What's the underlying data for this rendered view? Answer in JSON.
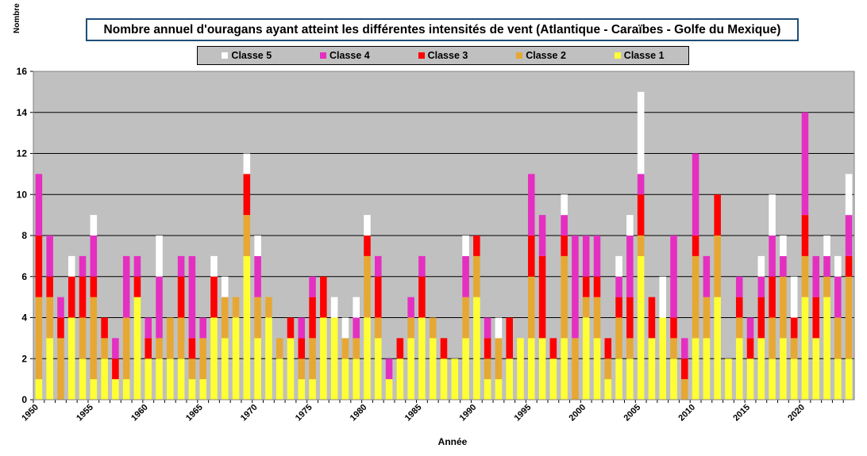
{
  "title": "Nombre annuel d'ouragans ayant atteint les différentes intensités de vent (Atlantique - Caraïbes - Golfe du Mexique)",
  "legend": [
    {
      "label": "Classe 5",
      "color": "#ffffff"
    },
    {
      "label": "Classe 4",
      "color": "#e52fc1"
    },
    {
      "label": "Classe 3",
      "color": "#ff0000"
    },
    {
      "label": "Classe 2",
      "color": "#e6a833"
    },
    {
      "label": "Classe 1",
      "color": "#ffff33"
    }
  ],
  "chart_data": {
    "type": "bar",
    "stacked": true,
    "title": "Nombre annuel d'ouragans ayant atteint les différentes intensités de vent (Atlantique - Caraïbes - Golfe du Mexique)",
    "xlabel": "Année",
    "ylabel": "Nombre",
    "ylim": [
      0,
      16
    ],
    "yticks": [
      0,
      2,
      4,
      6,
      8,
      10,
      12,
      14,
      16
    ],
    "xtick_labels": [
      "1950",
      "1955",
      "1960",
      "1965",
      "1970",
      "1975",
      "1980",
      "1985",
      "1990",
      "1995",
      "2000",
      "2005",
      "2010",
      "2015",
      "2020"
    ],
    "grid": true,
    "legend_position": "top",
    "plot_background": "#c0c0c0",
    "categories": [
      1950,
      1951,
      1952,
      1953,
      1954,
      1955,
      1956,
      1957,
      1958,
      1959,
      1960,
      1961,
      1962,
      1963,
      1964,
      1965,
      1966,
      1967,
      1968,
      1969,
      1970,
      1971,
      1972,
      1973,
      1974,
      1975,
      1976,
      1977,
      1978,
      1979,
      1980,
      1981,
      1982,
      1983,
      1984,
      1985,
      1986,
      1987,
      1988,
      1989,
      1990,
      1991,
      1992,
      1993,
      1994,
      1995,
      1996,
      1997,
      1998,
      1999,
      2000,
      2001,
      2002,
      2003,
      2004,
      2005,
      2006,
      2007,
      2008,
      2009,
      2010,
      2011,
      2012,
      2013,
      2014,
      2015,
      2016,
      2017,
      2018,
      2019,
      2020,
      2021,
      2022,
      2023,
      2024
    ],
    "series": [
      {
        "name": "Classe 1",
        "color": "#ffff33",
        "values": [
          1,
          3,
          0,
          4,
          2,
          1,
          2,
          1,
          1,
          5,
          2,
          2,
          2,
          2,
          1,
          1,
          4,
          3,
          4,
          7,
          3,
          4,
          2,
          3,
          1,
          1,
          4,
          4,
          2,
          2,
          4,
          3,
          1,
          2,
          3,
          4,
          3,
          2,
          2,
          3,
          5,
          1,
          1,
          2,
          3,
          3,
          3,
          2,
          3,
          0,
          4,
          3,
          1,
          2,
          2,
          7,
          3,
          4,
          2,
          0,
          3,
          3,
          5,
          2,
          3,
          2,
          3,
          2,
          3,
          2,
          5,
          3,
          5,
          2,
          2
        ]
      },
      {
        "name": "Classe 2",
        "color": "#e6a833",
        "values": [
          4,
          2,
          3,
          0,
          2,
          4,
          1,
          0,
          3,
          0,
          0,
          1,
          2,
          2,
          1,
          2,
          0,
          2,
          1,
          2,
          2,
          1,
          1,
          0,
          1,
          2,
          0,
          0,
          1,
          1,
          3,
          1,
          0,
          0,
          1,
          0,
          1,
          0,
          0,
          2,
          2,
          1,
          2,
          0,
          0,
          3,
          0,
          0,
          4,
          3,
          1,
          2,
          1,
          2,
          1,
          1,
          0,
          0,
          1,
          1,
          4,
          2,
          3,
          0,
          1,
          0,
          0,
          2,
          3,
          1,
          2,
          0,
          1,
          2,
          4
        ]
      },
      {
        "name": "Classe 3",
        "color": "#ff0000",
        "values": [
          3,
          1,
          1,
          2,
          2,
          1,
          1,
          1,
          0,
          1,
          1,
          0,
          0,
          2,
          1,
          0,
          2,
          0,
          0,
          2,
          0,
          0,
          0,
          1,
          1,
          2,
          2,
          0,
          0,
          0,
          1,
          2,
          0,
          1,
          0,
          2,
          0,
          1,
          0,
          0,
          1,
          1,
          0,
          2,
          0,
          2,
          4,
          1,
          1,
          0,
          1,
          1,
          1,
          1,
          2,
          2,
          2,
          0,
          1,
          1,
          1,
          0,
          2,
          0,
          1,
          1,
          2,
          2,
          0,
          1,
          2,
          2,
          0,
          0,
          1
        ]
      },
      {
        "name": "Classe 4",
        "color": "#e52fc1",
        "values": [
          3,
          2,
          1,
          0,
          1,
          2,
          0,
          1,
          3,
          1,
          1,
          3,
          0,
          1,
          4,
          1,
          0,
          0,
          0,
          0,
          2,
          0,
          0,
          0,
          1,
          1,
          0,
          0,
          0,
          1,
          0,
          1,
          1,
          0,
          1,
          1,
          0,
          0,
          0,
          2,
          0,
          1,
          0,
          0,
          0,
          3,
          2,
          0,
          1,
          5,
          2,
          2,
          0,
          1,
          3,
          1,
          0,
          0,
          4,
          1,
          4,
          2,
          0,
          0,
          1,
          1,
          1,
          2,
          1,
          0,
          5,
          2,
          1,
          2,
          2
        ]
      },
      {
        "name": "Classe 5",
        "color": "#ffffff",
        "values": [
          0,
          0,
          0,
          1,
          0,
          1,
          0,
          0,
          0,
          0,
          0,
          2,
          0,
          0,
          0,
          0,
          1,
          1,
          0,
          1,
          1,
          0,
          0,
          0,
          0,
          0,
          0,
          1,
          1,
          1,
          1,
          0,
          0,
          0,
          0,
          0,
          0,
          0,
          0,
          1,
          0,
          0,
          1,
          0,
          0,
          0,
          0,
          0,
          1,
          0,
          0,
          0,
          0,
          1,
          1,
          4,
          0,
          2,
          0,
          0,
          0,
          0,
          0,
          0,
          0,
          0,
          1,
          2,
          1,
          2,
          0,
          0,
          1,
          1,
          2
        ]
      }
    ]
  }
}
